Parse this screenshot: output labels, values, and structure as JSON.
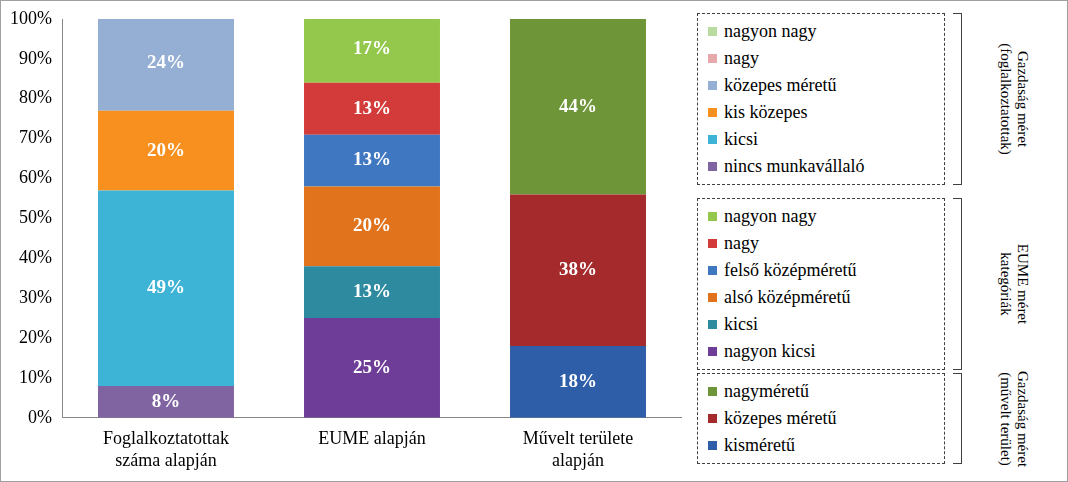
{
  "chart_data": {
    "type": "bar",
    "stacked": true,
    "orientation": "vertical",
    "grid": false,
    "data_labels": true,
    "categories": [
      [
        "Foglalkoztatottak",
        "száma alapján"
      ],
      [
        "EUME alapján"
      ],
      [
        "Művelt területe",
        "alapján"
      ]
    ],
    "ylim": [
      0,
      100
    ],
    "yticks": [
      {
        "value": 0,
        "label": "0%"
      },
      {
        "value": 10,
        "label": "10%"
      },
      {
        "value": 20,
        "label": "20%"
      },
      {
        "value": 30,
        "label": "30%"
      },
      {
        "value": 40,
        "label": "40%"
      },
      {
        "value": 50,
        "label": "50%"
      },
      {
        "value": 60,
        "label": "60%"
      },
      {
        "value": 70,
        "label": "70%"
      },
      {
        "value": 80,
        "label": "80%"
      },
      {
        "value": 90,
        "label": "90%"
      },
      {
        "value": 100,
        "label": "100%"
      }
    ],
    "groups": [
      {
        "title": [
          "Gazdaság méret",
          "(foglalkoztatottak)"
        ],
        "series": [
          {
            "name": "nincs munkavállaló",
            "color": "#8064a2",
            "values": [
              8,
              null,
              null
            ],
            "value_labels": [
              "8%",
              null,
              null
            ]
          },
          {
            "name": "kicsi",
            "color": "#3db3d6",
            "values": [
              49,
              null,
              null
            ],
            "value_labels": [
              "49%",
              null,
              null
            ]
          },
          {
            "name": "kis közepes",
            "color": "#f7901e",
            "values": [
              20,
              null,
              null
            ],
            "value_labels": [
              "20%",
              null,
              null
            ]
          },
          {
            "name": "közepes méretű",
            "color": "#95aed3",
            "values": [
              24,
              null,
              null
            ],
            "value_labels": [
              "24%",
              null,
              null
            ]
          },
          {
            "name": "nagy",
            "color": "#e6a8aa",
            "values": [
              null,
              null,
              null
            ],
            "value_labels": [
              null,
              null,
              null
            ]
          },
          {
            "name": "nagyon nagy",
            "color": "#b9dba0",
            "values": [
              null,
              null,
              null
            ],
            "value_labels": [
              null,
              null,
              null
            ]
          }
        ]
      },
      {
        "title": [
          "EUME méret",
          "kategóriák"
        ],
        "series": [
          {
            "name": "nagyon kicsi",
            "color": "#6e3d97",
            "values": [
              null,
              25,
              null
            ],
            "value_labels": [
              null,
              "25%",
              null
            ]
          },
          {
            "name": "kicsi",
            "color": "#2e8a9e",
            "values": [
              null,
              13,
              null
            ],
            "value_labels": [
              null,
              "13%",
              null
            ]
          },
          {
            "name": "alsó középméretű",
            "color": "#e0731c",
            "values": [
              null,
              20,
              null
            ],
            "value_labels": [
              null,
              "20%",
              null
            ]
          },
          {
            "name": "felső középméretű",
            "color": "#3f78c0",
            "values": [
              null,
              13,
              null
            ],
            "value_labels": [
              null,
              "13%",
              null
            ]
          },
          {
            "name": "nagy",
            "color": "#d33a3a",
            "values": [
              null,
              13,
              null
            ],
            "value_labels": [
              null,
              "13%",
              null
            ]
          },
          {
            "name": "nagyon nagy",
            "color": "#94c84d",
            "values": [
              null,
              17,
              null
            ],
            "value_labels": [
              null,
              "17%",
              null
            ]
          }
        ]
      },
      {
        "title": [
          "Gazdaság méret",
          "(művelt terület)"
        ],
        "series": [
          {
            "name": "kisméretű",
            "color": "#2f5ea8",
            "values": [
              null,
              null,
              18
            ],
            "value_labels": [
              null,
              null,
              "18%"
            ]
          },
          {
            "name": "közepes méretű",
            "color": "#a42a2c",
            "values": [
              null,
              null,
              38
            ],
            "value_labels": [
              null,
              null,
              "38%"
            ]
          },
          {
            "name": "nagyméretű",
            "color": "#6e9537",
            "values": [
              null,
              null,
              44
            ],
            "value_labels": [
              null,
              null,
              "44%"
            ]
          }
        ]
      }
    ]
  }
}
